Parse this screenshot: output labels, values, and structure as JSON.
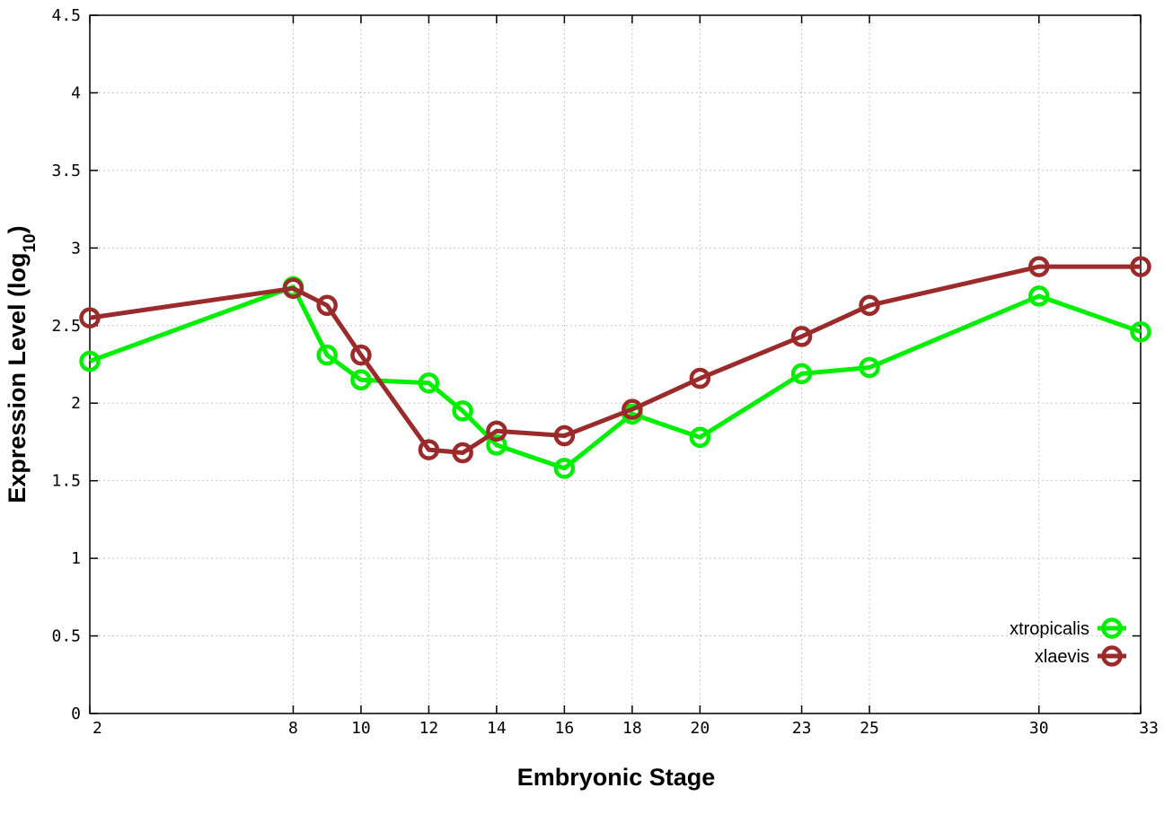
{
  "chart_data": {
    "type": "line",
    "xlabel": "Embryonic Stage",
    "ylabel": {
      "main": "Expression Level (log",
      "subscript": "10",
      "close": ")"
    },
    "x": [
      "2",
      "8",
      "9",
      "10",
      "12",
      "13",
      "14",
      "16",
      "18",
      "20",
      "23",
      "25",
      "30",
      "33"
    ],
    "x_tick_labels": [
      "2",
      "8",
      "10",
      "12",
      "14",
      "16",
      "18",
      "20",
      "23",
      "25",
      "30",
      "33"
    ],
    "ylim": [
      0,
      4.5
    ],
    "y_tick_labels": [
      "0",
      "0.5",
      "1",
      "1.5",
      "2",
      "2.5",
      "3",
      "3.5",
      "4",
      "4.5"
    ],
    "grid": true,
    "legend_position": "bottom-right",
    "series": [
      {
        "name": "xtropicalis",
        "color": "#00ee00",
        "values": [
          2.27,
          2.75,
          2.31,
          2.15,
          2.13,
          1.95,
          1.73,
          1.58,
          1.93,
          1.78,
          2.19,
          2.23,
          2.69,
          2.46
        ]
      },
      {
        "name": "xlaevis",
        "color": "#9b2a2a",
        "values": [
          2.55,
          2.74,
          2.63,
          2.31,
          1.7,
          1.68,
          1.82,
          1.79,
          1.96,
          2.16,
          2.43,
          2.63,
          2.88,
          2.88
        ]
      }
    ]
  }
}
